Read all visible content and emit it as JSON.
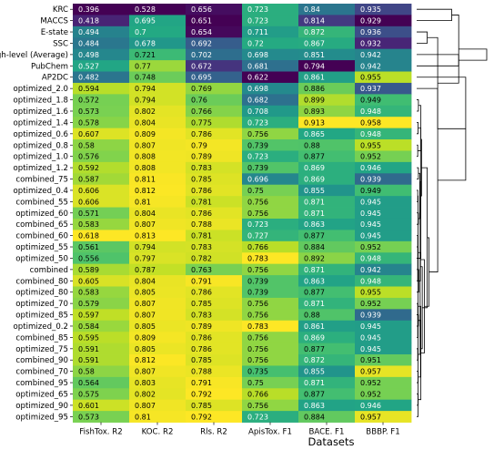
{
  "chart_data": {
    "type": "heatmap",
    "xlabel": "Datasets",
    "ylabel": "",
    "columns": [
      "FishTox. R2",
      "KOC. R2",
      "Rls. R2",
      "ApisTox. F1",
      "BACE. F1",
      "BBBP. F1"
    ],
    "rows": [
      "KRC",
      "MACCS",
      "E-state",
      "SSC",
      "High-level (Average)",
      "PubChem",
      "AP2DC",
      "optimized_2.0",
      "optimized_1.8",
      "optimized_1.6",
      "optimized_1.4",
      "optimized_0.6",
      "optimized_0.8",
      "optimized_1.0",
      "optimized_1.2",
      "combined_75",
      "optimized_0.4",
      "combined_55",
      "optimized_60",
      "combined_65",
      "combined_60",
      "optimized_55",
      "optimized_50",
      "combined",
      "combined_80",
      "optimized_80",
      "optimized_70",
      "optimized_85",
      "optimized_0.2",
      "combined_85",
      "optimized_75",
      "combined_90",
      "combined_70",
      "combined_95",
      "optimized_65",
      "optimized_90",
      "optimized_95"
    ],
    "cell_text": [
      [
        "0.396",
        "0.528",
        "0.656",
        "0.723",
        "0.84",
        "0.935"
      ],
      [
        "0.418",
        "0.695",
        "0.651",
        "0.723",
        "0.814",
        "0.929"
      ],
      [
        "0.494",
        "0.7",
        "0.654",
        "0.711",
        "0.872",
        "0.936"
      ],
      [
        "0.484",
        "0.678",
        "0.692",
        "0.72",
        "0.867",
        "0.932"
      ],
      [
        "0.498",
        "0.721",
        "0.702",
        "0.698",
        "0.851",
        "0.942"
      ],
      [
        "0.527",
        "0.77",
        "0.672",
        "0.681",
        "0.794",
        "0.942"
      ],
      [
        "0.482",
        "0.748",
        "0.695",
        "0.622",
        "0.861",
        "0.955"
      ],
      [
        "0.594",
        "0.794",
        "0.769",
        "0.698",
        "0.886",
        "0.937"
      ],
      [
        "0.572",
        "0.794",
        "0.76",
        "0.682",
        "0.899",
        "0.949"
      ],
      [
        "0.573",
        "0.802",
        "0.766",
        "0.708",
        "0.893",
        "0.948"
      ],
      [
        "0.578",
        "0.804",
        "0.775",
        "0.723",
        "0.913",
        "0.958"
      ],
      [
        "0.607",
        "0.809",
        "0.786",
        "0.756",
        "0.865",
        "0.948"
      ],
      [
        "0.58",
        "0.807",
        "0.79",
        "0.739",
        "0.88",
        "0.955"
      ],
      [
        "0.576",
        "0.808",
        "0.789",
        "0.723",
        "0.877",
        "0.952"
      ],
      [
        "0.592",
        "0.808",
        "0.783",
        "0.739",
        "0.869",
        "0.946"
      ],
      [
        "0.587",
        "0.811",
        "0.785",
        "0.696",
        "0.869",
        "0.939"
      ],
      [
        "0.606",
        "0.812",
        "0.786",
        "0.75",
        "0.855",
        "0.949"
      ],
      [
        "0.606",
        "0.81",
        "0.781",
        "0.756",
        "0.871",
        "0.945"
      ],
      [
        "0.571",
        "0.804",
        "0.786",
        "0.756",
        "0.871",
        "0.945"
      ],
      [
        "0.583",
        "0.807",
        "0.788",
        "0.723",
        "0.863",
        "0.945"
      ],
      [
        "0.618",
        "0.813",
        "0.781",
        "0.727",
        "0.877",
        "0.945"
      ],
      [
        "0.561",
        "0.794",
        "0.783",
        "0.766",
        "0.884",
        "0.952"
      ],
      [
        "0.556",
        "0.797",
        "0.782",
        "0.783",
        "0.892",
        "0.948"
      ],
      [
        "0.589",
        "0.787",
        "0.763",
        "0.756",
        "0.871",
        "0.942"
      ],
      [
        "0.605",
        "0.804",
        "0.791",
        "0.739",
        "0.863",
        "0.948"
      ],
      [
        "0.583",
        "0.805",
        "0.786",
        "0.739",
        "0.877",
        "0.955"
      ],
      [
        "0.579",
        "0.807",
        "0.785",
        "0.756",
        "0.871",
        "0.952"
      ],
      [
        "0.597",
        "0.807",
        "0.783",
        "0.756",
        "0.88",
        "0.939"
      ],
      [
        "0.584",
        "0.805",
        "0.789",
        "0.783",
        "0.861",
        "0.945"
      ],
      [
        "0.595",
        "0.809",
        "0.786",
        "0.756",
        "0.869",
        "0.945"
      ],
      [
        "0.591",
        "0.805",
        "0.786",
        "0.756",
        "0.877",
        "0.945"
      ],
      [
        "0.591",
        "0.812",
        "0.785",
        "0.756",
        "0.872",
        "0.951"
      ],
      [
        "0.58",
        "0.807",
        "0.788",
        "0.735",
        "0.855",
        "0.957"
      ],
      [
        "0.564",
        "0.803",
        "0.791",
        "0.75",
        "0.871",
        "0.952"
      ],
      [
        "0.575",
        "0.802",
        "0.792",
        "0.766",
        "0.877",
        "0.952"
      ],
      [
        "0.601",
        "0.807",
        "0.785",
        "0.756",
        "0.863",
        "0.946"
      ],
      [
        "0.573",
        "0.81",
        "0.792",
        "0.723",
        "0.884",
        "0.957"
      ]
    ],
    "color_range": {
      "FishTox. R2": [
        0.396,
        0.618
      ],
      "KOC. R2": [
        0.528,
        0.813
      ],
      "Rls. R2": [
        0.651,
        0.792
      ],
      "ApisTox. F1": [
        0.622,
        0.783
      ],
      "BACE. F1": [
        0.794,
        0.913
      ],
      "BBBP. F1": [
        0.929,
        0.958
      ]
    },
    "colormap": "viridis",
    "dendrogram": {
      "orientation": "right",
      "merges": [
        [
          16,
          17,
          0.003
        ],
        [
          20,
          24,
          0.003
        ],
        [
          26,
          29,
          0.003
        ],
        [
          30,
          31,
          0.003
        ],
        [
          9,
          8,
          0.005
        ],
        [
          10,
          11,
          0.004
        ],
        [
          12,
          13,
          0.003
        ],
        [
          14,
          15,
          0.005
        ],
        [
          18,
          19,
          0.005
        ],
        [
          21,
          22,
          0.004
        ],
        [
          25,
          23,
          0.006
        ],
        [
          27,
          28,
          0.005
        ],
        [
          32,
          33,
          0.004
        ],
        [
          34,
          35,
          0.004
        ],
        [
          36,
          37,
          0.004
        ],
        [
          38,
          41,
          0.012
        ],
        [
          39,
          40,
          0.01
        ],
        [
          42,
          43,
          0.012
        ],
        [
          44,
          45,
          0.009
        ],
        [
          46,
          47,
          0.011
        ],
        [
          48,
          49,
          0.011
        ],
        [
          50,
          51,
          0.012
        ],
        [
          52,
          53,
          0.01
        ],
        [
          54,
          55,
          0.014
        ],
        [
          56,
          57,
          0.016
        ],
        [
          58,
          59,
          0.022
        ],
        [
          60,
          61,
          0.03
        ],
        [
          62,
          63,
          0.035
        ],
        [
          64,
          7,
          0.06
        ],
        [
          65,
          6,
          0.14
        ],
        [
          2,
          3,
          0.03
        ],
        [
          0,
          1,
          0.1
        ],
        [
          66,
          67,
          0.06
        ],
        [
          4,
          5,
          0.12
        ],
        [
          68,
          69,
          0.12
        ],
        [
          70,
          71,
          0.2
        ]
      ]
    }
  }
}
